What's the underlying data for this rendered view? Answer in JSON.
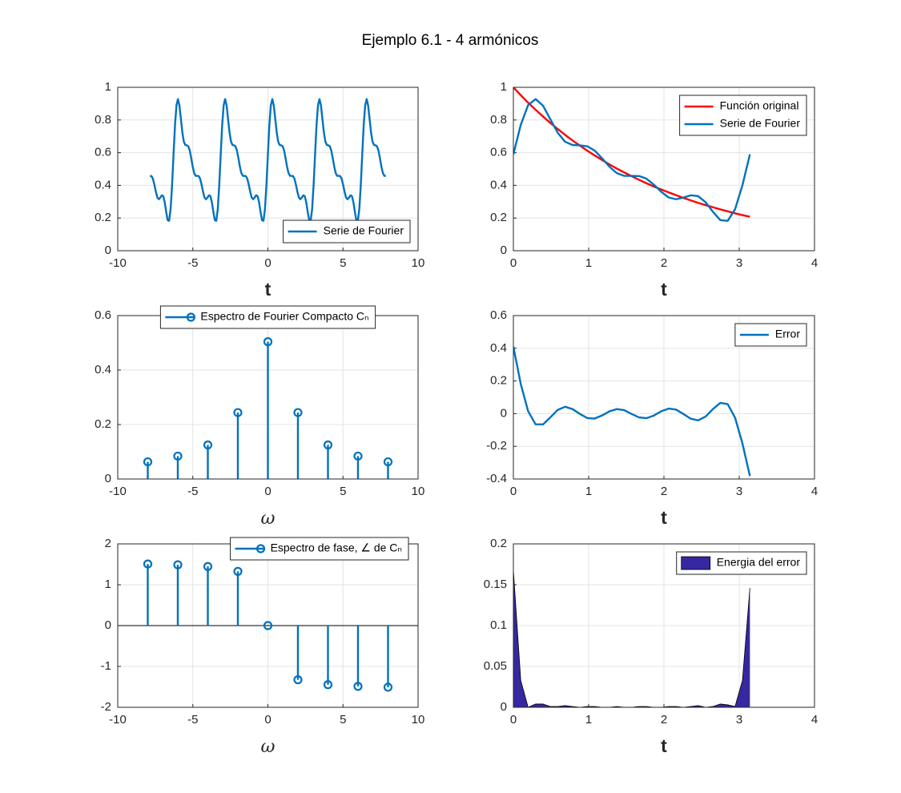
{
  "title": "Ejemplo 6.1 - 4 armónicos",
  "chart_data": [
    {
      "type": "line",
      "xlabel": "t",
      "legend": "southeast",
      "grid": true,
      "xlim": [
        -10,
        10
      ],
      "xticks": [
        -10,
        -5,
        0,
        5,
        10
      ],
      "ylim": [
        0,
        1
      ],
      "yticks": [
        0,
        0.2,
        0.4,
        0.6,
        0.8,
        1
      ],
      "x": [
        -7.854,
        -7.756,
        -7.658,
        -7.56,
        -7.461,
        -7.363,
        -7.265,
        -7.167,
        -7.069,
        -6.97,
        -6.872,
        -6.774,
        -6.676,
        -6.578,
        -6.48,
        -6.381,
        -6.283,
        -6.185,
        -6.087,
        -5.989,
        -5.89,
        -5.792,
        -5.694,
        -5.596,
        -5.498,
        -5.4,
        -5.301,
        -5.203,
        -5.105,
        -5.007,
        -4.909,
        -4.811,
        -4.712,
        -4.614,
        -4.516,
        -4.418,
        -4.32,
        -4.221,
        -4.123,
        -4.025,
        -3.927,
        -3.829,
        -3.731,
        -3.632,
        -3.534,
        -3.436,
        -3.338,
        -3.24,
        -3.142,
        -3.043,
        -2.945,
        -2.847,
        -2.749,
        -2.651,
        -2.553,
        -2.454,
        -2.356,
        -2.258,
        -2.16,
        -2.062,
        -1.963,
        -1.865,
        -1.767,
        -1.669,
        -1.571,
        -1.473,
        -1.374,
        -1.276,
        -1.178,
        -1.08,
        -0.982,
        -0.884,
        -0.785,
        -0.687,
        -0.589,
        -0.491,
        -0.393,
        -0.295,
        -0.196,
        -0.098,
        0,
        0.098,
        0.196,
        0.295,
        0.393,
        0.491,
        0.589,
        0.687,
        0.785,
        0.884,
        0.982,
        1.08,
        1.178,
        1.276,
        1.374,
        1.473,
        1.571,
        1.669,
        1.767,
        1.865,
        1.963,
        2.062,
        2.16,
        2.258,
        2.356,
        2.454,
        2.553,
        2.651,
        2.749,
        2.847,
        2.945,
        3.043,
        3.142,
        3.24,
        3.338,
        3.436,
        3.534,
        3.632,
        3.731,
        3.829,
        3.927,
        4.025,
        4.123,
        4.221,
        4.32,
        4.418,
        4.516,
        4.614,
        4.712,
        4.811,
        4.909,
        5.007,
        5.105,
        5.203,
        5.301,
        5.4,
        5.498,
        5.596,
        5.694,
        5.792,
        5.89,
        5.989,
        6.087,
        6.185,
        6.283,
        6.381,
        6.48,
        6.578,
        6.676,
        6.774,
        6.872,
        6.97,
        7.069,
        7.167,
        7.265,
        7.363,
        7.461,
        7.56,
        7.658,
        7.756,
        7.854
      ],
      "series": [
        {
          "name": "Serie de Fourier",
          "color": "#0072bd",
          "values": [
            0.458,
            0.457,
            0.441,
            0.405,
            0.361,
            0.326,
            0.315,
            0.325,
            0.339,
            0.334,
            0.297,
            0.238,
            0.187,
            0.183,
            0.254,
            0.401,
            0.59,
            0.77,
            0.891,
            0.928,
            0.888,
            0.805,
            0.722,
            0.667,
            0.647,
            0.645,
            0.639,
            0.613,
            0.566,
            0.514,
            0.475,
            0.458,
            0.458,
            0.457,
            0.441,
            0.405,
            0.361,
            0.326,
            0.315,
            0.325,
            0.339,
            0.334,
            0.297,
            0.238,
            0.187,
            0.183,
            0.254,
            0.401,
            0.59,
            0.77,
            0.891,
            0.928,
            0.888,
            0.805,
            0.722,
            0.667,
            0.647,
            0.645,
            0.639,
            0.613,
            0.566,
            0.514,
            0.475,
            0.458,
            0.458,
            0.457,
            0.441,
            0.405,
            0.361,
            0.326,
            0.315,
            0.325,
            0.339,
            0.334,
            0.297,
            0.238,
            0.187,
            0.183,
            0.254,
            0.401,
            0.59,
            0.77,
            0.891,
            0.928,
            0.888,
            0.805,
            0.722,
            0.667,
            0.647,
            0.645,
            0.639,
            0.613,
            0.566,
            0.514,
            0.475,
            0.458,
            0.458,
            0.457,
            0.441,
            0.405,
            0.361,
            0.326,
            0.315,
            0.325,
            0.339,
            0.334,
            0.297,
            0.238,
            0.187,
            0.183,
            0.254,
            0.401,
            0.59,
            0.77,
            0.891,
            0.928,
            0.888,
            0.805,
            0.722,
            0.667,
            0.647,
            0.645,
            0.639,
            0.613,
            0.566,
            0.514,
            0.475,
            0.458,
            0.458,
            0.457,
            0.441,
            0.405,
            0.361,
            0.326,
            0.315,
            0.325,
            0.339,
            0.334,
            0.297,
            0.238,
            0.187,
            0.183,
            0.254,
            0.401,
            0.59,
            0.77,
            0.891,
            0.928,
            0.888,
            0.805,
            0.722,
            0.667,
            0.647,
            0.645,
            0.639,
            0.613,
            0.566,
            0.514,
            0.475,
            0.458,
            0.458
          ]
        }
      ]
    },
    {
      "type": "line",
      "xlabel": "t",
      "legend": "northeast",
      "grid": true,
      "xlim": [
        0,
        4
      ],
      "xticks": [
        0,
        1,
        2,
        3,
        4
      ],
      "ylim": [
        0,
        1
      ],
      "yticks": [
        0,
        0.2,
        0.4,
        0.6,
        0.8,
        1
      ],
      "x": [
        0,
        0.098,
        0.196,
        0.295,
        0.393,
        0.491,
        0.589,
        0.687,
        0.785,
        0.884,
        0.982,
        1.08,
        1.178,
        1.276,
        1.374,
        1.473,
        1.571,
        1.669,
        1.767,
        1.865,
        1.963,
        2.062,
        2.16,
        2.258,
        2.356,
        2.454,
        2.553,
        2.651,
        2.749,
        2.847,
        2.945,
        3.043,
        3.142
      ],
      "series": [
        {
          "name": "Función original",
          "color": "#ff0000",
          "values": [
            1,
            0.952,
            0.906,
            0.863,
            0.822,
            0.782,
            0.745,
            0.709,
            0.675,
            0.643,
            0.612,
            0.583,
            0.555,
            0.528,
            0.503,
            0.479,
            0.456,
            0.434,
            0.413,
            0.393,
            0.375,
            0.357,
            0.34,
            0.323,
            0.308,
            0.293,
            0.279,
            0.266,
            0.253,
            0.241,
            0.229,
            0.218,
            0.208
          ]
        },
        {
          "name": "Serie de Fourier",
          "color": "#0072bd",
          "values": [
            0.59,
            0.77,
            0.891,
            0.928,
            0.888,
            0.805,
            0.722,
            0.667,
            0.647,
            0.645,
            0.639,
            0.613,
            0.566,
            0.514,
            0.475,
            0.458,
            0.458,
            0.457,
            0.441,
            0.405,
            0.361,
            0.326,
            0.315,
            0.325,
            0.339,
            0.334,
            0.297,
            0.238,
            0.187,
            0.183,
            0.254,
            0.401,
            0.59
          ]
        }
      ]
    },
    {
      "type": "stem",
      "xlabel": "ω",
      "legend": "north",
      "grid": true,
      "xlim": [
        -10,
        10
      ],
      "xticks": [
        -10,
        -5,
        0,
        5,
        10
      ],
      "ylim": [
        0,
        0.6
      ],
      "yticks": [
        0,
        0.2,
        0.4,
        0.6
      ],
      "x": [
        -8,
        -6,
        -4,
        -2,
        0,
        2,
        4,
        6,
        8
      ],
      "series": [
        {
          "name": "Espectro de Fourier Compacto Cₙ",
          "color": "#0072bd",
          "values": [
            0.063,
            0.084,
            0.125,
            0.244,
            0.504,
            0.244,
            0.125,
            0.084,
            0.063
          ]
        }
      ]
    },
    {
      "type": "line",
      "xlabel": "t",
      "legend": "northeast",
      "grid": true,
      "xlim": [
        0,
        4
      ],
      "xticks": [
        0,
        1,
        2,
        3,
        4
      ],
      "ylim": [
        -0.4,
        0.6
      ],
      "yticks": [
        -0.4,
        -0.2,
        0,
        0.2,
        0.4,
        0.6
      ],
      "x": [
        0,
        0.098,
        0.196,
        0.295,
        0.393,
        0.491,
        0.589,
        0.687,
        0.785,
        0.884,
        0.982,
        1.08,
        1.178,
        1.276,
        1.374,
        1.473,
        1.571,
        1.669,
        1.767,
        1.865,
        1.963,
        2.062,
        2.16,
        2.258,
        2.356,
        2.454,
        2.553,
        2.651,
        2.749,
        2.847,
        2.945,
        3.043,
        3.142
      ],
      "series": [
        {
          "name": "Error",
          "color": "#0072bd",
          "values": [
            0.41,
            0.182,
            0.015,
            -0.065,
            -0.066,
            -0.023,
            0.023,
            0.042,
            0.028,
            -0.002,
            -0.027,
            -0.03,
            -0.011,
            0.014,
            0.028,
            0.021,
            -0.002,
            -0.023,
            -0.028,
            -0.012,
            0.014,
            0.031,
            0.025,
            -0.002,
            -0.031,
            -0.041,
            -0.018,
            0.028,
            0.066,
            0.058,
            -0.025,
            -0.183,
            -0.382
          ]
        }
      ]
    },
    {
      "type": "stem",
      "xlabel": "ω",
      "legend": "northeast",
      "grid": true,
      "xlim": [
        -10,
        10
      ],
      "xticks": [
        -10,
        -5,
        0,
        5,
        10
      ],
      "ylim": [
        -2,
        2
      ],
      "yticks": [
        -2,
        -1,
        0,
        1,
        2
      ],
      "x": [
        -8,
        -6,
        -4,
        -2,
        0,
        2,
        4,
        6,
        8
      ],
      "series": [
        {
          "name": "Espectro de fase, ∠ de Cₙ",
          "color": "#0072bd",
          "values": [
            1.508,
            1.488,
            1.446,
            1.326,
            0,
            -1.326,
            -1.446,
            -1.488,
            -1.508
          ]
        }
      ]
    },
    {
      "type": "area",
      "xlabel": "t",
      "legend": "northeast",
      "grid": true,
      "xlim": [
        0,
        4
      ],
      "xticks": [
        0,
        1,
        2,
        3,
        4
      ],
      "ylim": [
        0,
        0.2
      ],
      "yticks": [
        0,
        0.05,
        0.1,
        0.15,
        0.2
      ],
      "x": [
        0,
        0.098,
        0.196,
        0.295,
        0.393,
        0.491,
        0.589,
        0.687,
        0.785,
        0.884,
        0.982,
        1.08,
        1.178,
        1.276,
        1.374,
        1.473,
        1.571,
        1.669,
        1.767,
        1.865,
        1.963,
        2.062,
        2.16,
        2.258,
        2.356,
        2.454,
        2.553,
        2.651,
        2.749,
        2.847,
        2.945,
        3.043,
        3.142
      ],
      "series": [
        {
          "name": "Energia del error",
          "color": "#3628a0",
          "values": [
            0.168,
            0.033,
            0.0,
            0.004,
            0.004,
            0.001,
            0.001,
            0.002,
            0.001,
            0.0,
            0.001,
            0.001,
            0.0,
            0.0,
            0.001,
            0.0,
            0.0,
            0.001,
            0.001,
            0.0,
            0.0,
            0.001,
            0.001,
            0.0,
            0.001,
            0.002,
            0.0,
            0.001,
            0.004,
            0.003,
            0.001,
            0.033,
            0.146
          ]
        }
      ]
    }
  ]
}
